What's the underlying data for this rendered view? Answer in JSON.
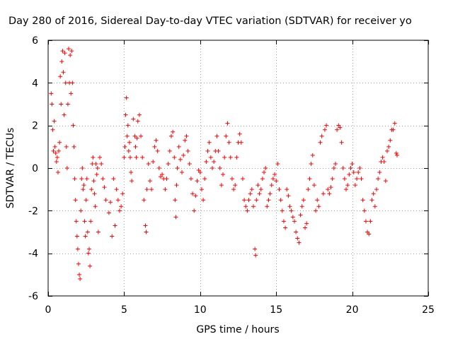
{
  "chart_data": {
    "type": "scatter",
    "title": "Day 280 of 2016, Sidereal Day-to-day VTEC variation (SDTVAR) for receiver yo",
    "xlabel": "GPS time / hours",
    "ylabel": "SDTVAR / TECUs",
    "xlim": [
      0,
      25
    ],
    "ylim": [
      -6,
      6
    ],
    "xticks": [
      0,
      5,
      10,
      15,
      20,
      25
    ],
    "yticks": [
      -6,
      -4,
      -2,
      0,
      2,
      4,
      6
    ],
    "grid": true,
    "marker": "+",
    "color": "#ff0000",
    "series": [
      {
        "name": "SDTVAR",
        "approx": true,
        "points": [
          [
            0.2,
            3.5
          ],
          [
            0.25,
            3.0
          ],
          [
            0.3,
            1.8
          ],
          [
            0.35,
            0.8
          ],
          [
            0.4,
            2.2
          ],
          [
            0.45,
            1.0
          ],
          [
            0.5,
            0.7
          ],
          [
            0.55,
            0.3
          ],
          [
            0.6,
            0.5
          ],
          [
            0.65,
            -0.2
          ],
          [
            0.7,
            0.8
          ],
          [
            0.75,
            1.2
          ],
          [
            0.8,
            4.3
          ],
          [
            0.85,
            3.0
          ],
          [
            0.9,
            5.0
          ],
          [
            0.95,
            5.5
          ],
          [
            1.0,
            4.5
          ],
          [
            1.05,
            2.5
          ],
          [
            1.1,
            5.4
          ],
          [
            1.15,
            4.0
          ],
          [
            1.2,
            1.0
          ],
          [
            1.25,
            0.0
          ],
          [
            1.3,
            3.0
          ],
          [
            1.35,
            5.6
          ],
          [
            1.4,
            4.0
          ],
          [
            1.45,
            5.3
          ],
          [
            1.5,
            3.5
          ],
          [
            1.55,
            5.5
          ],
          [
            1.6,
            4.0
          ],
          [
            1.65,
            2.0
          ],
          [
            1.7,
            1.0
          ],
          [
            1.75,
            -0.5
          ],
          [
            1.8,
            -1.5
          ],
          [
            1.85,
            -2.5
          ],
          [
            1.9,
            -3.2
          ],
          [
            1.95,
            -3.8
          ],
          [
            2.0,
            -4.5
          ],
          [
            2.05,
            -5.0
          ],
          [
            2.1,
            -5.2
          ],
          [
            2.15,
            -2.0
          ],
          [
            2.2,
            -0.5
          ],
          [
            2.25,
            0.0
          ],
          [
            2.3,
            -1.0
          ],
          [
            2.35,
            -0.8
          ],
          [
            2.4,
            -2.5
          ],
          [
            2.45,
            -3.2
          ],
          [
            2.5,
            -1.5
          ],
          [
            2.55,
            -0.5
          ],
          [
            2.6,
            -3.0
          ],
          [
            2.65,
            -4.0
          ],
          [
            2.7,
            -3.8
          ],
          [
            2.75,
            -4.6
          ],
          [
            2.8,
            -2.5
          ],
          [
            2.85,
            -1.0
          ],
          [
            2.9,
            0.2
          ],
          [
            2.95,
            0.5
          ],
          [
            3.0,
            -0.6
          ],
          [
            3.05,
            -1.2
          ],
          [
            3.1,
            -1.8
          ],
          [
            3.15,
            0.2
          ],
          [
            3.2,
            -0.3
          ],
          [
            3.25,
            0.0
          ],
          [
            3.3,
            -3.0
          ],
          [
            3.4,
            0.5
          ],
          [
            3.5,
            0.2
          ],
          [
            3.6,
            -0.5
          ],
          [
            3.7,
            -0.9
          ],
          [
            3.8,
            -1.5
          ],
          [
            4.0,
            -2.1
          ],
          [
            4.1,
            -1.6
          ],
          [
            4.2,
            -3.2
          ],
          [
            4.3,
            -0.5
          ],
          [
            4.4,
            -2.7
          ],
          [
            4.5,
            -1.0
          ],
          [
            4.6,
            -1.5
          ],
          [
            4.7,
            -2.0
          ],
          [
            4.8,
            -1.8
          ],
          [
            4.9,
            -1.2
          ],
          [
            5.0,
            0.5
          ],
          [
            5.05,
            1.0
          ],
          [
            5.1,
            2.5
          ],
          [
            5.15,
            3.3
          ],
          [
            5.2,
            1.5
          ],
          [
            5.25,
            2.0
          ],
          [
            5.3,
            0.8
          ],
          [
            5.35,
            1.2
          ],
          [
            5.4,
            0.5
          ],
          [
            5.45,
            -0.2
          ],
          [
            5.5,
            -0.6
          ],
          [
            5.6,
            2.3
          ],
          [
            5.7,
            1.5
          ],
          [
            5.75,
            1.0
          ],
          [
            5.8,
            0.5
          ],
          [
            5.85,
            1.4
          ],
          [
            5.9,
            2.2
          ],
          [
            6.0,
            2.5
          ],
          [
            6.1,
            1.5
          ],
          [
            6.2,
            0.5
          ],
          [
            6.3,
            -1.5
          ],
          [
            6.4,
            -2.7
          ],
          [
            6.45,
            -3.0
          ],
          [
            6.5,
            -1.0
          ],
          [
            6.6,
            0.2
          ],
          [
            6.7,
            -0.6
          ],
          [
            6.8,
            -1.0
          ],
          [
            6.9,
            0.3
          ],
          [
            7.0,
            1.0
          ],
          [
            7.1,
            1.3
          ],
          [
            7.2,
            0.8
          ],
          [
            7.3,
            0.0
          ],
          [
            7.4,
            -0.4
          ],
          [
            7.5,
            -0.3
          ],
          [
            7.6,
            -0.5
          ],
          [
            7.7,
            -1.0
          ],
          [
            7.8,
            -0.5
          ],
          [
            7.9,
            0.2
          ],
          [
            8.0,
            0.8
          ],
          [
            8.1,
            1.5
          ],
          [
            8.2,
            1.7
          ],
          [
            8.3,
            0.5
          ],
          [
            8.35,
            -1.5
          ],
          [
            8.4,
            -2.3
          ],
          [
            8.45,
            -0.8
          ],
          [
            8.5,
            0.0
          ],
          [
            8.6,
            1.0
          ],
          [
            8.7,
            0.4
          ],
          [
            8.8,
            -0.2
          ],
          [
            8.9,
            0.6
          ],
          [
            9.0,
            1.3
          ],
          [
            9.1,
            1.5
          ],
          [
            9.2,
            0.8
          ],
          [
            9.3,
            0.2
          ],
          [
            9.4,
            -0.5
          ],
          [
            9.5,
            -1.2
          ],
          [
            9.6,
            -2.0
          ],
          [
            9.7,
            -1.3
          ],
          [
            9.8,
            -0.6
          ],
          [
            9.9,
            -0.1
          ],
          [
            10.0,
            -0.2
          ],
          [
            10.1,
            -1.0
          ],
          [
            10.2,
            -1.5
          ],
          [
            10.3,
            -0.5
          ],
          [
            10.4,
            0.3
          ],
          [
            10.5,
            0.8
          ],
          [
            10.6,
            1.2
          ],
          [
            10.7,
            0.5
          ],
          [
            10.8,
            0.0
          ],
          [
            10.9,
            0.3
          ],
          [
            11.0,
            0.8
          ],
          [
            11.1,
            1.5
          ],
          [
            11.2,
            0.8
          ],
          [
            11.3,
            0.0
          ],
          [
            11.4,
            -0.8
          ],
          [
            11.5,
            -0.3
          ],
          [
            11.6,
            0.5
          ],
          [
            11.7,
            1.5
          ],
          [
            11.8,
            2.1
          ],
          [
            11.9,
            1.2
          ],
          [
            12.0,
            0.5
          ],
          [
            12.1,
            -0.5
          ],
          [
            12.2,
            -1.0
          ],
          [
            12.3,
            -0.8
          ],
          [
            12.4,
            0.5
          ],
          [
            12.5,
            1.2
          ],
          [
            12.6,
            1.6
          ],
          [
            12.7,
            1.2
          ],
          [
            12.8,
            -0.5
          ],
          [
            12.9,
            -1.5
          ],
          [
            13.0,
            -1.8
          ],
          [
            13.1,
            -2.0
          ],
          [
            13.2,
            -1.5
          ],
          [
            13.3,
            -1.2
          ],
          [
            13.4,
            -1.0
          ],
          [
            13.5,
            -1.8
          ],
          [
            13.6,
            -3.8
          ],
          [
            13.65,
            -4.1
          ],
          [
            13.7,
            -1.5
          ],
          [
            13.8,
            -0.8
          ],
          [
            13.9,
            -1.2
          ],
          [
            14.0,
            -1.0
          ],
          [
            14.1,
            -0.5
          ],
          [
            14.2,
            -0.2
          ],
          [
            14.3,
            0.0
          ],
          [
            14.4,
            -1.8
          ],
          [
            14.5,
            -1.5
          ],
          [
            14.6,
            -1.2
          ],
          [
            14.7,
            -0.8
          ],
          [
            14.8,
            -0.5
          ],
          [
            14.9,
            -0.3
          ],
          [
            15.0,
            -0.6
          ],
          [
            15.1,
            0.2
          ],
          [
            15.2,
            -1.0
          ],
          [
            15.3,
            -1.5
          ],
          [
            15.4,
            -2.0
          ],
          [
            15.5,
            -2.5
          ],
          [
            15.6,
            -2.8
          ],
          [
            15.7,
            -1.0
          ],
          [
            15.8,
            -1.3
          ],
          [
            15.9,
            -1.8
          ],
          [
            16.0,
            -2.0
          ],
          [
            16.1,
            -2.3
          ],
          [
            16.2,
            -2.5
          ],
          [
            16.3,
            -3.0
          ],
          [
            16.4,
            -3.3
          ],
          [
            16.5,
            -3.5
          ],
          [
            16.6,
            -2.2
          ],
          [
            16.7,
            -1.8
          ],
          [
            16.8,
            -1.5
          ],
          [
            16.9,
            -2.8
          ],
          [
            17.0,
            -2.6
          ],
          [
            17.1,
            -1.0
          ],
          [
            17.2,
            -0.5
          ],
          [
            17.3,
            0.2
          ],
          [
            17.4,
            0.6
          ],
          [
            17.5,
            -0.8
          ],
          [
            17.6,
            -2.0
          ],
          [
            17.7,
            -1.5
          ],
          [
            17.8,
            -1.8
          ],
          [
            17.9,
            1.2
          ],
          [
            18.0,
            1.5
          ],
          [
            18.1,
            -1.2
          ],
          [
            18.2,
            1.8
          ],
          [
            18.3,
            2.0
          ],
          [
            18.4,
            -1.0
          ],
          [
            18.5,
            -1.2
          ],
          [
            18.6,
            -0.9
          ],
          [
            18.7,
            -0.5
          ],
          [
            18.8,
            0.0
          ],
          [
            18.9,
            0.2
          ],
          [
            19.0,
            1.8
          ],
          [
            19.1,
            2.0
          ],
          [
            19.2,
            1.9
          ],
          [
            19.3,
            1.2
          ],
          [
            19.4,
            0.0
          ],
          [
            19.5,
            -0.5
          ],
          [
            19.6,
            -1.0
          ],
          [
            19.7,
            -0.8
          ],
          [
            19.8,
            -0.3
          ],
          [
            19.9,
            0.0
          ],
          [
            20.0,
            0.2
          ],
          [
            20.1,
            -0.2
          ],
          [
            20.2,
            -0.8
          ],
          [
            20.3,
            -0.5
          ],
          [
            20.4,
            -0.2
          ],
          [
            20.5,
            0.0
          ],
          [
            20.6,
            -0.5
          ],
          [
            20.7,
            -1.5
          ],
          [
            20.8,
            -2.0
          ],
          [
            20.9,
            -2.5
          ],
          [
            21.0,
            -3.0
          ],
          [
            21.1,
            -3.1
          ],
          [
            21.2,
            -2.5
          ],
          [
            21.3,
            -1.5
          ],
          [
            21.4,
            -1.2
          ],
          [
            21.5,
            -1.8
          ],
          [
            21.6,
            -1.0
          ],
          [
            21.7,
            -0.5
          ],
          [
            21.8,
            -0.2
          ],
          [
            21.9,
            0.3
          ],
          [
            22.0,
            0.5
          ],
          [
            22.1,
            0.3
          ],
          [
            22.2,
            -0.6
          ],
          [
            22.3,
            0.8
          ],
          [
            22.4,
            1.0
          ],
          [
            22.5,
            1.3
          ],
          [
            22.6,
            1.8
          ],
          [
            22.7,
            1.8
          ],
          [
            22.8,
            2.1
          ],
          [
            22.9,
            0.7
          ],
          [
            22.95,
            0.6
          ]
        ]
      }
    ]
  }
}
